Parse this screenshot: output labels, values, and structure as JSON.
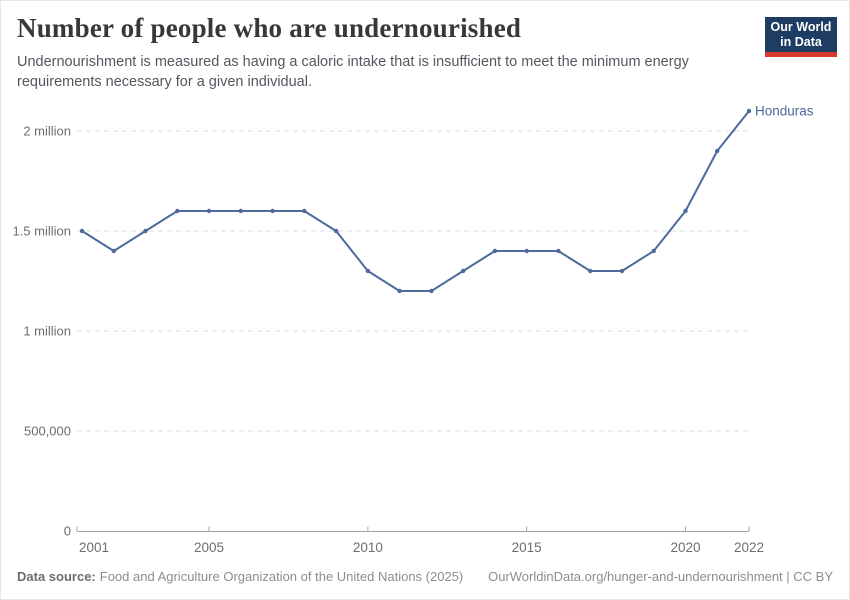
{
  "header": {
    "logo": {
      "line1": "Our World",
      "line2": "in Data",
      "bg_color": "#1d3d63",
      "accent_color": "#d8392c"
    }
  },
  "footer": {
    "datasource_label": "Data source:",
    "datasource_text": "Food and Agriculture Organization of the United Nations (2025)",
    "link_text": "OurWorldinData.org/hunger-and-undernourishment | CC BY"
  },
  "chart_data": {
    "type": "line",
    "title": "Number of people who are undernourished",
    "subtitle": "Undernourishment is measured as having a caloric intake that is insufficient to meet the minimum energy requirements necessary for a given individual.",
    "x": [
      2001,
      2002,
      2003,
      2004,
      2005,
      2006,
      2007,
      2008,
      2009,
      2010,
      2011,
      2012,
      2013,
      2014,
      2015,
      2016,
      2017,
      2018,
      2019,
      2020,
      2021,
      2022
    ],
    "series": [
      {
        "name": "Honduras",
        "color": "#4C6A9C",
        "values": [
          1500000,
          1400000,
          1500000,
          1600000,
          1600000,
          1600000,
          1600000,
          1600000,
          1500000,
          1300000,
          1200000,
          1200000,
          1300000,
          1400000,
          1400000,
          1400000,
          1300000,
          1300000,
          1400000,
          1600000,
          1900000,
          2100000
        ]
      }
    ],
    "end_label": "Honduras",
    "xlabel": "",
    "ylabel": "",
    "xlim": [
      2001,
      2022
    ],
    "ylim": [
      0,
      2200000
    ],
    "xticks": [
      {
        "year": 2001,
        "label": "2001"
      },
      {
        "year": 2005,
        "label": "2005"
      },
      {
        "year": 2010,
        "label": "2010"
      },
      {
        "year": 2015,
        "label": "2015"
      },
      {
        "year": 2020,
        "label": "2020"
      },
      {
        "year": 2022,
        "label": "2022"
      }
    ],
    "yticks": [
      {
        "value": 0,
        "label": "0"
      },
      {
        "value": 500000,
        "label": "500,000"
      },
      {
        "value": 1000000,
        "label": "1 million"
      },
      {
        "value": 1500000,
        "label": "1.5 million"
      },
      {
        "value": 2000000,
        "label": "2 million"
      }
    ],
    "grid": "horizontal-dashed",
    "legend_position": "end-of-line-label",
    "colors": {
      "line": "#4C6A9C",
      "gridline": "#dcdcdc",
      "axis": "#a3a3a3",
      "tick_text": "#6e6e6e"
    }
  }
}
